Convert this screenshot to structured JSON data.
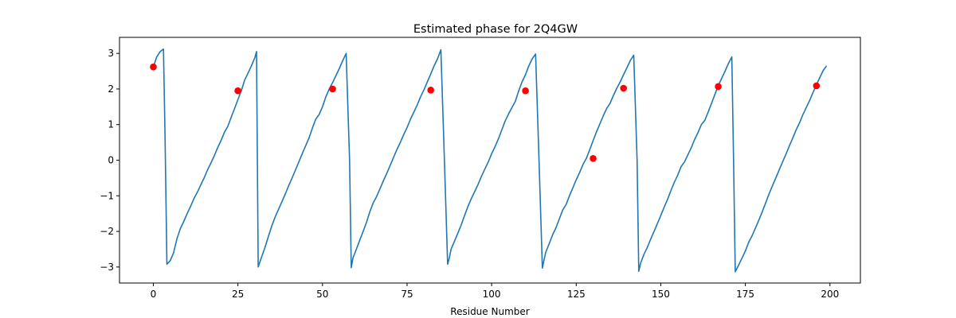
{
  "chart_data": {
    "type": "line",
    "title": "Estimated phase for 2Q4GW",
    "xlabel": "Residue Number",
    "ylabel": "",
    "xlim": [
      -10,
      209
    ],
    "ylim": [
      -3.45,
      3.45
    ],
    "xticks": [
      0,
      25,
      50,
      75,
      100,
      125,
      150,
      175,
      200
    ],
    "yticks": [
      -3,
      -2,
      -1,
      0,
      1,
      2,
      3
    ],
    "grid": false,
    "colors": {
      "line": "#1f77b4",
      "markers": "#ff0000"
    },
    "series": [
      {
        "kind": "line",
        "x": [
          0,
          1,
          2,
          3,
          3.5,
          4,
          5,
          6,
          7,
          8,
          9,
          10,
          11,
          12,
          13,
          14,
          15,
          16,
          17,
          18,
          19,
          20,
          21,
          22,
          23,
          24,
          25,
          26,
          27,
          28,
          29,
          30,
          30.5,
          31,
          32,
          33,
          34,
          35,
          36,
          37,
          38,
          39,
          40,
          41,
          42,
          43,
          44,
          45,
          46,
          47,
          48,
          49,
          50,
          51,
          52,
          53,
          54,
          55,
          56,
          57,
          58,
          58.5,
          59,
          60,
          61,
          62,
          63,
          64,
          65,
          66,
          67,
          68,
          69,
          70,
          71,
          72,
          73,
          74,
          75,
          76,
          77,
          78,
          79,
          80,
          81,
          82,
          83,
          84,
          85,
          86,
          87,
          87.5,
          88,
          89,
          90,
          91,
          92,
          93,
          94,
          95,
          96,
          97,
          98,
          99,
          100,
          101,
          102,
          103,
          104,
          105,
          106,
          107,
          108,
          109,
          110,
          111,
          112,
          113,
          114,
          115,
          115.5,
          116,
          117,
          118,
          119,
          120,
          121,
          122,
          123,
          124,
          125,
          126,
          127,
          128,
          129,
          130,
          131,
          132,
          133,
          134,
          135,
          136,
          137,
          138,
          139,
          140,
          141,
          142,
          143,
          143.5,
          144,
          145,
          146,
          147,
          148,
          149,
          150,
          151,
          152,
          153,
          154,
          155,
          156,
          157,
          158,
          159,
          160,
          161,
          162,
          163,
          164,
          165,
          166,
          167,
          168,
          169,
          170,
          171,
          171.5,
          172,
          173,
          174,
          175,
          176,
          177,
          178,
          179,
          180,
          181,
          182,
          183,
          184,
          185,
          186,
          187,
          188,
          189,
          190,
          191,
          192,
          193,
          194,
          195,
          196,
          197,
          198,
          199
        ],
        "y": [
          2.62,
          2.9,
          3.05,
          3.12,
          0.5,
          -2.92,
          -2.82,
          -2.6,
          -2.2,
          -1.92,
          -1.72,
          -1.5,
          -1.3,
          -1.08,
          -0.9,
          -0.7,
          -0.5,
          -0.28,
          -0.08,
          0.12,
          0.35,
          0.55,
          0.78,
          0.95,
          1.2,
          1.45,
          1.7,
          1.95,
          2.25,
          2.45,
          2.65,
          2.88,
          3.05,
          -3.0,
          -2.72,
          -2.45,
          -2.15,
          -1.85,
          -1.6,
          -1.38,
          -1.17,
          -0.95,
          -0.72,
          -0.5,
          -0.28,
          -0.05,
          0.18,
          0.4,
          0.62,
          0.9,
          1.15,
          1.28,
          1.5,
          1.78,
          2.0,
          2.18,
          2.38,
          2.58,
          2.8,
          3.0,
          0.0,
          -3.02,
          -2.75,
          -2.5,
          -2.25,
          -2.0,
          -1.75,
          -1.45,
          -1.2,
          -1.02,
          -0.8,
          -0.58,
          -0.37,
          -0.15,
          0.08,
          0.3,
          0.5,
          0.72,
          0.92,
          1.15,
          1.35,
          1.55,
          1.78,
          1.98,
          2.2,
          2.42,
          2.65,
          2.85,
          3.1,
          0.1,
          -2.92,
          -2.75,
          -2.5,
          -2.28,
          -2.05,
          -1.82,
          -1.55,
          -1.3,
          -1.08,
          -0.88,
          -0.68,
          -0.45,
          -0.25,
          -0.05,
          0.18,
          0.38,
          0.6,
          0.85,
          1.1,
          1.3,
          1.48,
          1.65,
          1.95,
          2.2,
          2.4,
          2.65,
          2.85,
          2.98,
          0.0,
          -3.03,
          -2.8,
          -2.58,
          -2.35,
          -2.1,
          -1.9,
          -1.65,
          -1.4,
          -1.25,
          -1.0,
          -0.78,
          -0.55,
          -0.35,
          -0.12,
          0.05,
          0.3,
          0.55,
          0.8,
          1.02,
          1.25,
          1.45,
          1.6,
          1.82,
          2.02,
          2.2,
          2.4,
          2.6,
          2.8,
          2.95,
          0.0,
          -3.12,
          -2.9,
          -2.65,
          -2.45,
          -2.22,
          -2.0,
          -1.78,
          -1.55,
          -1.32,
          -1.1,
          -0.85,
          -0.62,
          -0.42,
          -0.18,
          -0.05,
          0.15,
          0.35,
          0.58,
          0.78,
          1.0,
          1.12,
          1.35,
          1.6,
          1.85,
          2.1,
          2.3,
          2.5,
          2.72,
          2.9,
          0.0,
          -3.13,
          -2.95,
          -2.75,
          -2.55,
          -2.3,
          -2.12,
          -1.9,
          -1.68,
          -1.45,
          -1.2,
          -0.95,
          -0.72,
          -0.5,
          -0.27,
          -0.05,
          0.17,
          0.4,
          0.62,
          0.85,
          1.05,
          1.28,
          1.48,
          1.68,
          1.9,
          2.12,
          2.32,
          2.52,
          2.65
        ]
      },
      {
        "kind": "scatter",
        "x": [
          0,
          25,
          53,
          82,
          110,
          130,
          139,
          167,
          196
        ],
        "y": [
          2.62,
          1.95,
          2.0,
          1.97,
          1.95,
          0.05,
          2.02,
          2.07,
          2.09
        ]
      }
    ]
  }
}
